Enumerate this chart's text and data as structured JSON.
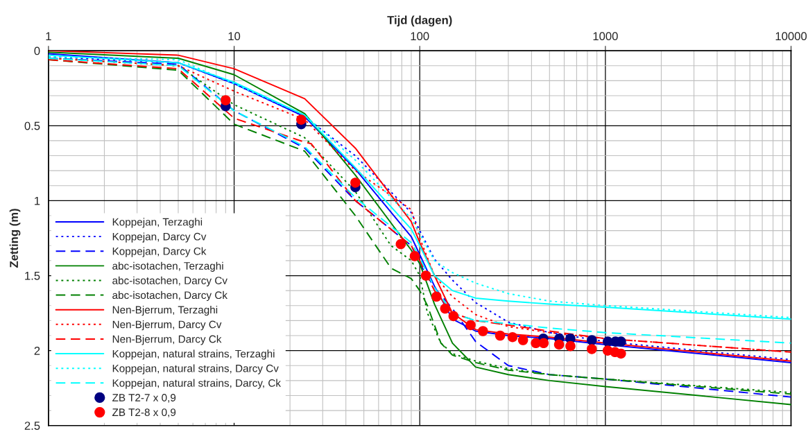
{
  "chart_data": {
    "type": "line",
    "xlabel": "Tijd (dagen)",
    "ylabel": "Zetting (m)",
    "log": "x",
    "xlim": [
      1,
      10000
    ],
    "xticks": [
      1,
      10,
      100,
      1000,
      10000
    ],
    "ylim": [
      2.5,
      0
    ],
    "yticks": [
      0,
      0.5,
      1,
      1.5,
      2,
      2.5
    ],
    "grid": true,
    "legend": "bottom left",
    "series": [
      {
        "name": "Koppejan, Terzaghi",
        "color": "#0000ff",
        "line_style": "solid",
        "x": [
          1,
          5,
          10,
          24,
          45,
          90,
          100,
          120,
          150,
          200,
          300,
          500,
          1000,
          10000
        ],
        "values": [
          0.02,
          0.08,
          0.22,
          0.44,
          0.79,
          1.24,
          1.36,
          1.57,
          1.79,
          1.87,
          1.9,
          1.92,
          1.96,
          2.08
        ]
      },
      {
        "name": "Koppejan, Darcy Cv",
        "color": "#0000ff",
        "line_style": "dotted",
        "x": [
          1,
          5,
          10,
          24,
          45,
          90,
          100,
          120,
          150,
          200,
          300,
          500,
          1000,
          10000
        ],
        "values": [
          0.04,
          0.08,
          0.22,
          0.44,
          0.7,
          1.08,
          1.2,
          1.39,
          1.53,
          1.68,
          1.81,
          1.88,
          1.94,
          2.06
        ]
      },
      {
        "name": "Koppejan, Darcy Ck",
        "color": "#0000ff",
        "line_style": "dashed",
        "x": [
          1,
          5,
          10,
          24,
          45,
          90,
          100,
          120,
          150,
          200,
          300,
          500,
          1000,
          10000
        ],
        "values": [
          0.05,
          0.09,
          0.4,
          0.65,
          1.0,
          1.3,
          1.42,
          1.58,
          1.72,
          1.94,
          2.1,
          2.16,
          2.19,
          2.31
        ]
      },
      {
        "name": "abc-isotachen, Terzaghi",
        "color": "#008000",
        "line_style": "solid",
        "x": [
          1,
          5,
          10,
          24,
          45,
          90,
          100,
          120,
          150,
          200,
          300,
          500,
          1000,
          10000
        ],
        "values": [
          0.01,
          0.05,
          0.16,
          0.42,
          0.83,
          1.33,
          1.42,
          1.69,
          1.95,
          2.11,
          2.16,
          2.2,
          2.24,
          2.36
        ]
      },
      {
        "name": "abc-isotachen, Darcy Cv",
        "color": "#008000",
        "line_style": "dotted",
        "x": [
          1,
          5,
          10,
          24,
          45,
          70,
          90,
          100,
          110,
          130,
          150,
          200,
          300,
          500,
          1000,
          10000
        ],
        "values": [
          0.05,
          0.1,
          0.36,
          0.58,
          0.94,
          1.3,
          1.4,
          1.5,
          1.75,
          1.95,
          2.02,
          2.07,
          2.12,
          2.16,
          2.19,
          2.28
        ]
      },
      {
        "name": "abc-isotachen, Darcy Ck",
        "color": "#008000",
        "line_style": "dashed",
        "x": [
          1,
          5,
          10,
          24,
          45,
          70,
          90,
          100,
          110,
          130,
          150,
          200,
          300,
          500,
          1000,
          10000
        ],
        "values": [
          0.06,
          0.13,
          0.49,
          0.67,
          1.1,
          1.45,
          1.52,
          1.6,
          1.7,
          1.95,
          2.03,
          2.08,
          2.13,
          2.16,
          2.19,
          2.29
        ]
      },
      {
        "name": "Nen-Bjerrum, Terzaghi",
        "color": "#ff0000",
        "line_style": "solid",
        "x": [
          1,
          5,
          10,
          24,
          45,
          90,
          100,
          120,
          150,
          200,
          300,
          500,
          1000,
          10000
        ],
        "values": [
          0.0,
          0.03,
          0.12,
          0.32,
          0.65,
          1.14,
          1.28,
          1.5,
          1.75,
          1.86,
          1.89,
          1.91,
          1.95,
          2.07
        ]
      },
      {
        "name": "Nen-Bjerrum, Darcy Cv",
        "color": "#ff0000",
        "line_style": "dotted",
        "x": [
          1,
          5,
          10,
          24,
          45,
          90,
          100,
          120,
          150,
          200,
          300,
          500,
          1000,
          10000
        ],
        "values": [
          0.05,
          0.1,
          0.27,
          0.46,
          0.8,
          1.06,
          1.25,
          1.5,
          1.64,
          1.76,
          1.84,
          1.88,
          1.92,
          2.01
        ]
      },
      {
        "name": "Nen-Bjerrum, Darcy Ck",
        "color": "#ff0000",
        "line_style": "dashed",
        "x": [
          1,
          5,
          10,
          24,
          26,
          45,
          90,
          100,
          120,
          150,
          200,
          300,
          500,
          1000,
          10000
        ],
        "values": [
          0.06,
          0.12,
          0.45,
          0.61,
          0.62,
          1.0,
          1.3,
          1.4,
          1.6,
          1.75,
          1.8,
          1.83,
          1.87,
          1.92,
          2.01
        ]
      },
      {
        "name": "Koppejan, natural strains, Terzaghi",
        "color": "#00ffff",
        "line_style": "solid",
        "x": [
          1,
          5,
          10,
          24,
          45,
          90,
          100,
          120,
          150,
          200,
          300,
          500,
          1000,
          10000
        ],
        "values": [
          0.03,
          0.08,
          0.21,
          0.43,
          0.78,
          1.19,
          1.3,
          1.5,
          1.6,
          1.65,
          1.67,
          1.69,
          1.71,
          1.79
        ]
      },
      {
        "name": "Koppejan, natural strains, Darcy Cv",
        "color": "#00ffff",
        "line_style": "dotted",
        "x": [
          1,
          5,
          10,
          24,
          45,
          90,
          100,
          120,
          150,
          200,
          300,
          500,
          1000,
          10000
        ],
        "values": [
          0.04,
          0.06,
          0.22,
          0.43,
          0.73,
          1.12,
          1.22,
          1.4,
          1.48,
          1.55,
          1.62,
          1.67,
          1.7,
          1.78
        ]
      },
      {
        "name": "Koppejan, natural strains, Darcy, Ck",
        "color": "#00ffff",
        "line_style": "dashed",
        "x": [
          1,
          5,
          10,
          24,
          45,
          90,
          100,
          120,
          150,
          200,
          300,
          500,
          1000,
          10000
        ],
        "values": [
          0.05,
          0.1,
          0.4,
          0.64,
          0.98,
          1.28,
          1.38,
          1.58,
          1.75,
          1.8,
          1.82,
          1.85,
          1.88,
          1.95
        ]
      },
      {
        "name": "ZB T2-7 x 0,9",
        "type": "scatter",
        "marker": "circle",
        "color": "#000080",
        "x": [
          9,
          23,
          45,
          463,
          564,
          648,
          845,
          1030,
          1133,
          1214
        ],
        "values": [
          0.37,
          0.49,
          0.91,
          1.92,
          1.92,
          1.92,
          1.93,
          1.94,
          1.94,
          1.94
        ]
      },
      {
        "name": "ZB T2-8 x 0,9",
        "type": "scatter",
        "marker": "circle",
        "color": "#ff0000",
        "x": [
          9,
          23,
          45,
          79,
          94,
          108,
          123,
          137,
          152,
          188,
          219,
          271,
          316,
          360,
          422,
          465,
          563,
          648,
          845,
          1029,
          1127,
          1213
        ],
        "values": [
          0.33,
          0.46,
          0.88,
          1.29,
          1.37,
          1.5,
          1.64,
          1.72,
          1.77,
          1.83,
          1.87,
          1.9,
          1.91,
          1.93,
          1.95,
          1.95,
          1.96,
          1.97,
          1.99,
          2.0,
          2.01,
          2.02
        ]
      }
    ]
  }
}
